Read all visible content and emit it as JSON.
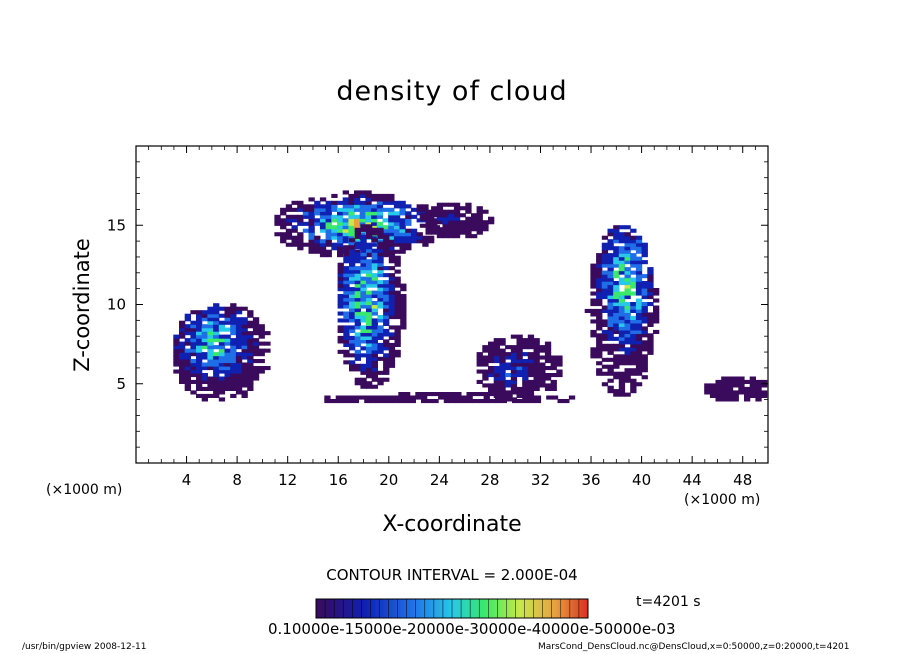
{
  "chart_data": {
    "type": "heatmap",
    "title": "density of cloud",
    "xlabel": "X-coordinate",
    "ylabel": "Z-coordinate",
    "x_unit_left": "(×1000 m)",
    "x_unit_right": "(×1000 m)",
    "xlim": [
      0,
      50
    ],
    "ylim": [
      0,
      20
    ],
    "x_ticks": [
      4,
      8,
      12,
      16,
      20,
      24,
      28,
      32,
      36,
      40,
      44,
      48
    ],
    "y_ticks": [
      5,
      10,
      15
    ],
    "contour_interval": "CONTOUR INTERVAL = 2.000E-04",
    "time_label": "t=4201 s",
    "colorbar_labels": "0.10000e-15000e-20000e-30000e-40000e-50000e-03",
    "colorbar_range": [
      0.0,
      0.0006
    ],
    "colormap": [
      "#3a0a5c",
      "#1020b0",
      "#1f6ee8",
      "#27c8e8",
      "#3ae86a",
      "#c8e84a",
      "#e8a040",
      "#d83020"
    ],
    "blobs": [
      {
        "x0": 2.5,
        "x1": 10.5,
        "z0": 3.7,
        "z1": 10.0,
        "core_x": 6.0,
        "core_z": 7.5,
        "peak": 0.00032
      },
      {
        "x0": 10.5,
        "x1": 24.0,
        "z0": 12.8,
        "z1": 17.0,
        "core_x": 17.5,
        "core_z": 15.0,
        "peak": 0.00042
      },
      {
        "x0": 15.5,
        "x1": 21.0,
        "z0": 4.5,
        "z1": 15.0,
        "core_x": 18.0,
        "core_z": 10.0,
        "peak": 0.0004
      },
      {
        "x0": 22.0,
        "x1": 28.0,
        "z0": 14.0,
        "z1": 16.3,
        "core_x": 24.5,
        "core_z": 15.2,
        "peak": 0.0001
      },
      {
        "x0": 26.5,
        "x1": 33.5,
        "z0": 3.7,
        "z1": 8.0,
        "core_x": 29.5,
        "core_z": 5.8,
        "peak": 0.00016
      },
      {
        "x0": 35.5,
        "x1": 41.0,
        "z0": 4.0,
        "z1": 15.0,
        "core_x": 38.5,
        "core_z": 11.0,
        "peak": 0.00036
      },
      {
        "x0": 44.5,
        "x1": 50.0,
        "z0": 3.7,
        "z1": 5.4,
        "core_x": 47.0,
        "core_z": 4.4,
        "peak": 8e-05
      },
      {
        "x0": 14.0,
        "x1": 35.0,
        "z0": 3.6,
        "z1": 4.3,
        "core_x": 22.0,
        "core_z": 3.9,
        "peak": 7e-05
      }
    ]
  },
  "footer_left": "/usr/bin/gpview   2008-12-11",
  "footer_right": "MarsCond_DensCloud.nc@DensCloud,x=0:50000,z=0:20000,t=4201"
}
